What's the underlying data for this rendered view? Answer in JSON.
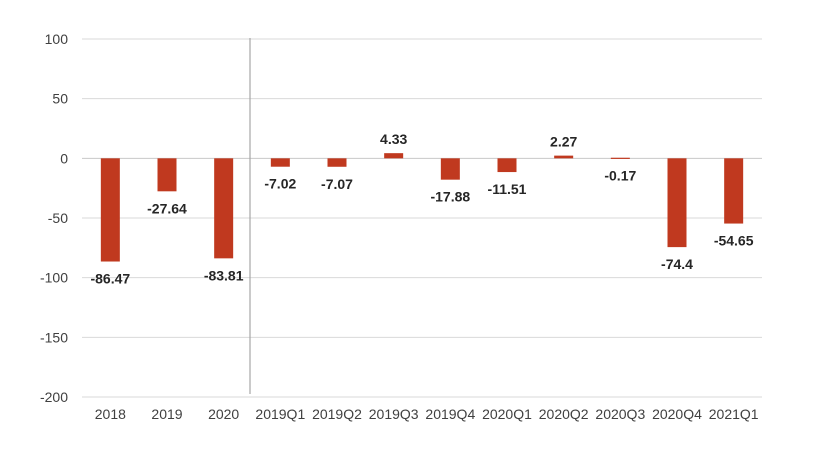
{
  "chart_data": {
    "type": "bar",
    "categories": [
      "2018",
      "2019",
      "2020",
      "2019Q1",
      "2019Q2",
      "2019Q3",
      "2019Q4",
      "2020Q1",
      "2020Q2",
      "2020Q3",
      "2020Q4",
      "2021Q1"
    ],
    "values": [
      -86.47,
      -27.64,
      -83.81,
      -7.02,
      -7.07,
      4.33,
      -17.88,
      -11.51,
      2.27,
      -0.17,
      -74.4,
      -54.65
    ],
    "value_labels": [
      "-86.47",
      "-27.64",
      "-83.81",
      "-7.02",
      "-7.07",
      "4.33",
      "-17.88",
      "-11.51",
      "2.27",
      "-0.17",
      "-74.4",
      "-54.65"
    ],
    "ylim": [
      -200,
      100
    ],
    "yticks": [
      100,
      50,
      0,
      -50,
      -100,
      -150,
      -200
    ],
    "ytick_labels": [
      "100",
      "50",
      "0",
      "-50",
      "-100",
      "-150",
      "-200"
    ],
    "grid": true,
    "divider_after_category_index": 2,
    "bar_color": "#c0391f",
    "title": "",
    "xlabel": "",
    "ylabel": ""
  }
}
